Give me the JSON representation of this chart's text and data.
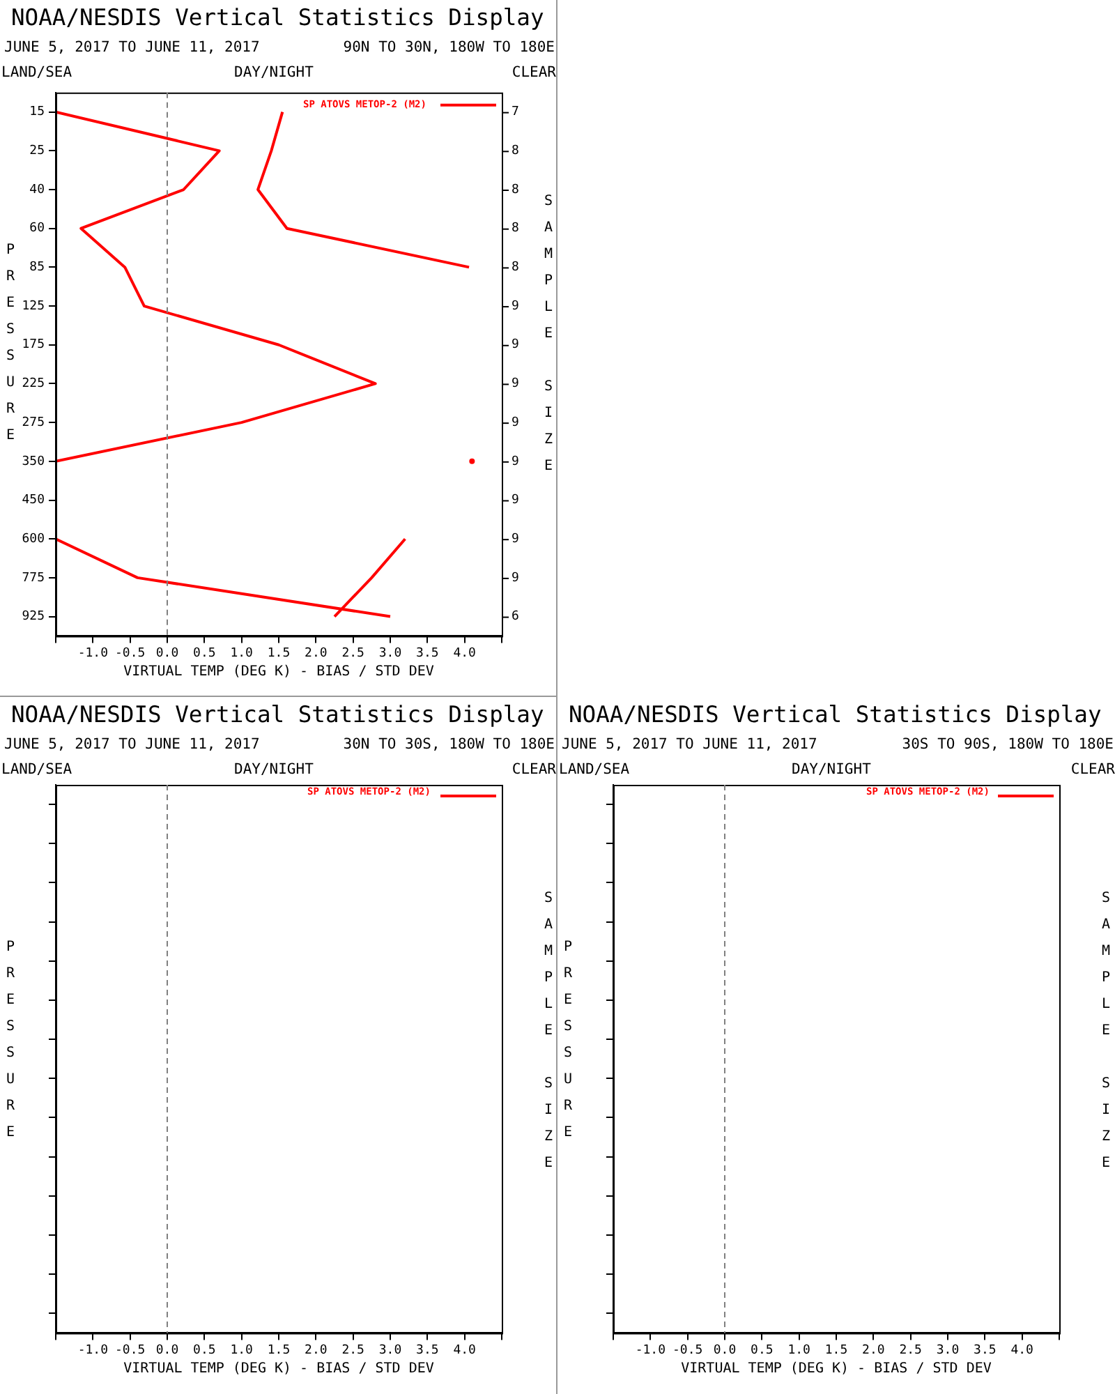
{
  "chart_data": [
    {
      "type": "line",
      "orientation": "horizontal",
      "title": "NOAA/NESDIS Vertical Statistics Display",
      "subtitle": "JUNE 5, 2017 TO JUNE 11, 2017",
      "xlabel": "VIRTUAL TEMP (DEG K) - BIAS / STD DEV",
      "ylabel": "PRESSURE",
      "y2label": "SAMPLE SIZE",
      "categories": [
        "15",
        "25",
        "40",
        "60",
        "85",
        "125",
        "175",
        "225",
        "275",
        "350",
        "450",
        "600",
        "775",
        "925"
      ],
      "series": [
        {
          "name": "SP ATOVS METOP-2 (M2)",
          "color": "#ff0000",
          "values": [
            -1.5,
            0.7,
            0.22,
            -1.16,
            -0.57,
            -0.31,
            1.5,
            2.8,
            1.0,
            -1.5,
            null,
            -1.5,
            -0.4,
            3.0
          ]
        },
        {
          "color": "#ff0000",
          "values": [
            1.55,
            1.4,
            1.22,
            1.61,
            4.06,
            null,
            null,
            null,
            null,
            4.1,
            null,
            3.2,
            2.75,
            2.25
          ]
        }
      ],
      "xlim": [
        -1.5,
        4.5
      ],
      "xticks": [
        {
          "value": -1.5,
          "label": null
        },
        {
          "value": -1,
          "label": "-1.0"
        },
        {
          "value": -0.5,
          "label": "-0.5"
        },
        {
          "value": 0,
          "label": "0.0"
        },
        {
          "value": 0.5,
          "label": "0.5"
        },
        {
          "value": 1,
          "label": "1.0"
        },
        {
          "value": 1.5,
          "label": "1.5"
        },
        {
          "value": 2,
          "label": "2.0"
        },
        {
          "value": 2.5,
          "label": "2.5"
        },
        {
          "value": 3,
          "label": "3.0"
        },
        {
          "value": 3.5,
          "label": "3.5"
        },
        {
          "value": 4,
          "label": "4.0"
        },
        {
          "value": 4.5,
          "label": null
        }
      ],
      "ref_lines": [
        {
          "axis": "x",
          "value": 0,
          "color": "#808080",
          "line_style": "dashed"
        }
      ],
      "legend": "top right",
      "annotations": [
        "90N TO 30N, 180W TO 180E",
        "LAND/SEA",
        "DAY/NIGHT",
        "CLEAR",
        "7",
        "8",
        "8",
        "8",
        "8",
        "9",
        "9",
        "9",
        "9",
        "9",
        "9",
        "9",
        "9",
        "6"
      ]
    },
    {
      "type": "line",
      "orientation": "horizontal",
      "title": "NOAA/NESDIS Vertical Statistics Display",
      "subtitle": "JUNE 5, 2017 TO JUNE 11, 2017",
      "xlabel": "VIRTUAL TEMP (DEG K) - BIAS / STD DEV",
      "ylabel": "PRESSURE",
      "y2label": "SAMPLE SIZE",
      "categories": [
        null,
        null,
        null,
        null,
        null,
        null,
        null,
        null,
        null,
        null,
        null,
        null,
        null,
        null
      ],
      "xlim": [
        -1.5,
        4.5
      ],
      "xticks": [
        {
          "value": -1.5,
          "label": null
        },
        {
          "value": -1,
          "label": "-1.0"
        },
        {
          "value": -0.5,
          "label": "-0.5"
        },
        {
          "value": 0,
          "label": "0.0"
        },
        {
          "value": 0.5,
          "label": "0.5"
        },
        {
          "value": 1,
          "label": "1.0"
        },
        {
          "value": 1.5,
          "label": "1.5"
        },
        {
          "value": 2,
          "label": "2.0"
        },
        {
          "value": 2.5,
          "label": "2.5"
        },
        {
          "value": 3,
          "label": "3.0"
        },
        {
          "value": 3.5,
          "label": "3.5"
        },
        {
          "value": 4,
          "label": "4.0"
        },
        {
          "value": 4.5,
          "label": null
        }
      ],
      "ref_lines": [
        {
          "axis": "x",
          "value": 0,
          "color": "#808080",
          "line_style": "dashed"
        }
      ],
      "tick_labels": "x",
      "annotations": [
        "30N TO 30S, 180W TO 180E",
        "LAND/SEA",
        "DAY/NIGHT",
        "CLEAR",
        "SP ATOVS METOP-2 (M2)"
      ]
    },
    {
      "type": "line",
      "orientation": "horizontal",
      "title": "NOAA/NESDIS Vertical Statistics Display",
      "subtitle": "JUNE 5, 2017 TO JUNE 11, 2017",
      "xlabel": "VIRTUAL TEMP (DEG K) - BIAS / STD DEV",
      "ylabel": "PRESSURE",
      "y2label": "SAMPLE SIZE",
      "categories": [
        null,
        null,
        null,
        null,
        null,
        null,
        null,
        null,
        null,
        null,
        null,
        null,
        null,
        null
      ],
      "xlim": [
        -1.5,
        4.5
      ],
      "xticks": [
        {
          "value": -1.5,
          "label": null
        },
        {
          "value": -1,
          "label": "-1.0"
        },
        {
          "value": -0.5,
          "label": "-0.5"
        },
        {
          "value": 0,
          "label": "0.0"
        },
        {
          "value": 0.5,
          "label": "0.5"
        },
        {
          "value": 1,
          "label": "1.0"
        },
        {
          "value": 1.5,
          "label": "1.5"
        },
        {
          "value": 2,
          "label": "2.0"
        },
        {
          "value": 2.5,
          "label": "2.5"
        },
        {
          "value": 3,
          "label": "3.0"
        },
        {
          "value": 3.5,
          "label": "3.5"
        },
        {
          "value": 4,
          "label": "4.0"
        },
        {
          "value": 4.5,
          "label": null
        }
      ],
      "ref_lines": [
        {
          "axis": "x",
          "value": 0,
          "color": "#808080",
          "line_style": "dashed"
        }
      ],
      "tick_labels": "x",
      "annotations": [
        "30S TO 90S, 180W TO 180E",
        "LAND/SEA",
        "DAY/NIGHT",
        "CLEAR",
        "SP ATOVS METOP-2 (M2)"
      ]
    }
  ]
}
